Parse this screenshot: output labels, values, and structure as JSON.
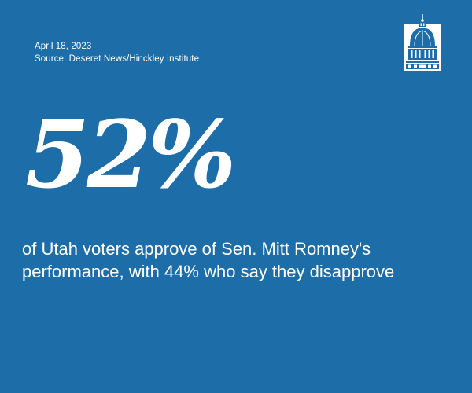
{
  "meta": {
    "date": "April 18, 2023",
    "source": "Source: Deseret News/Hinckley Institute"
  },
  "logo": {
    "icon": "capitol-dome-icon"
  },
  "stat": {
    "value": "52%",
    "description": "of Utah voters approve of Sen. Mitt Romney's performance, with 44% who say they disapprove"
  },
  "colors": {
    "background": "#1d6ea8",
    "text": "#ffffff"
  }
}
